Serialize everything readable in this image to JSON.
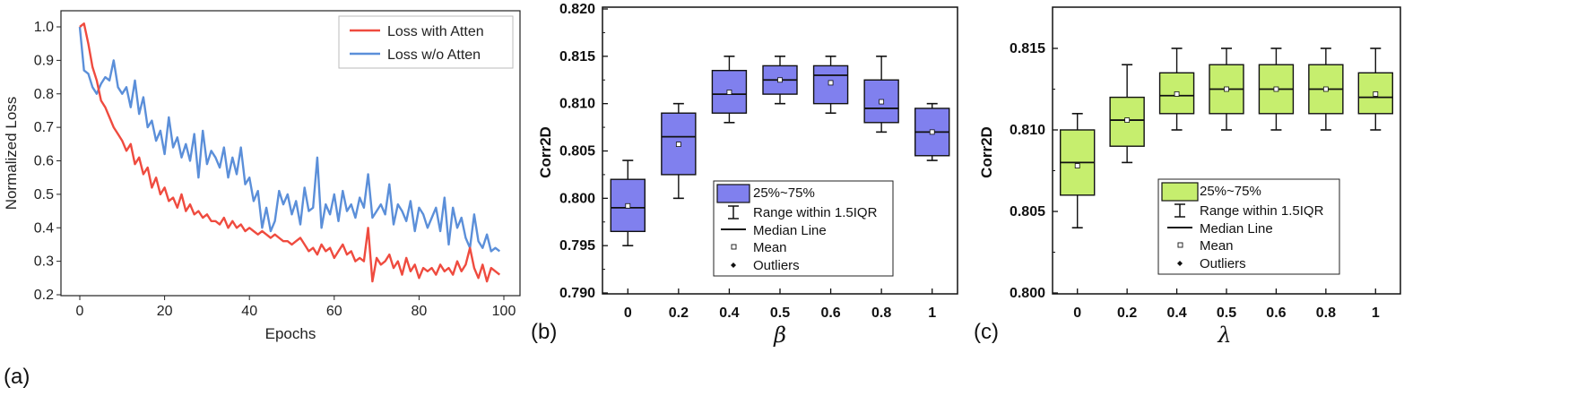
{
  "chart_data": [
    {
      "panel_label": "(a)",
      "type": "line",
      "xlabel": "Epochs",
      "ylabel": "Normalized Loss",
      "xlim": [
        0,
        100
      ],
      "ylim": [
        0.2,
        1.05
      ],
      "xticks": [
        "0",
        "20",
        "40",
        "60",
        "80",
        "100"
      ],
      "yticks": [
        "0.2",
        "0.3",
        "0.4",
        "0.5",
        "0.6",
        "0.7",
        "0.8",
        "0.9",
        "1.0"
      ],
      "legend_position": "top-right",
      "series": [
        {
          "name": "Loss with Atten",
          "color": "#ef4b3f",
          "x": [
            0,
            1,
            2,
            3,
            4,
            5,
            6,
            7,
            8,
            9,
            10,
            11,
            12,
            13,
            14,
            15,
            16,
            17,
            18,
            19,
            20,
            21,
            22,
            23,
            24,
            25,
            26,
            27,
            28,
            29,
            30,
            31,
            32,
            33,
            34,
            35,
            36,
            37,
            38,
            39,
            40,
            41,
            42,
            43,
            44,
            45,
            46,
            47,
            48,
            49,
            50,
            51,
            52,
            53,
            54,
            55,
            56,
            57,
            58,
            59,
            60,
            61,
            62,
            63,
            64,
            65,
            66,
            67,
            68,
            69,
            70,
            71,
            72,
            73,
            74,
            75,
            76,
            77,
            78,
            79,
            80,
            81,
            82,
            83,
            84,
            85,
            86,
            87,
            88,
            89,
            90,
            91,
            92,
            93,
            94,
            95,
            96,
            97,
            98,
            99
          ],
          "values": [
            1.0,
            1.01,
            0.95,
            0.88,
            0.84,
            0.78,
            0.76,
            0.73,
            0.7,
            0.68,
            0.66,
            0.63,
            0.65,
            0.59,
            0.61,
            0.56,
            0.58,
            0.52,
            0.55,
            0.5,
            0.52,
            0.48,
            0.49,
            0.46,
            0.5,
            0.45,
            0.47,
            0.44,
            0.45,
            0.43,
            0.44,
            0.42,
            0.42,
            0.41,
            0.43,
            0.4,
            0.42,
            0.4,
            0.41,
            0.39,
            0.4,
            0.39,
            0.38,
            0.39,
            0.38,
            0.37,
            0.38,
            0.37,
            0.36,
            0.36,
            0.35,
            0.36,
            0.37,
            0.35,
            0.33,
            0.34,
            0.32,
            0.35,
            0.33,
            0.34,
            0.31,
            0.33,
            0.35,
            0.32,
            0.33,
            0.3,
            0.31,
            0.3,
            0.4,
            0.24,
            0.31,
            0.29,
            0.3,
            0.32,
            0.28,
            0.3,
            0.26,
            0.31,
            0.27,
            0.29,
            0.25,
            0.28,
            0.27,
            0.28,
            0.26,
            0.29,
            0.27,
            0.28,
            0.26,
            0.3,
            0.27,
            0.29,
            0.34,
            0.28,
            0.25,
            0.29,
            0.24,
            0.28,
            0.27,
            0.26
          ]
        },
        {
          "name": "Loss w/o Atten",
          "color": "#5b8fd9",
          "x": [
            0,
            1,
            2,
            3,
            4,
            5,
            6,
            7,
            8,
            9,
            10,
            11,
            12,
            13,
            14,
            15,
            16,
            17,
            18,
            19,
            20,
            21,
            22,
            23,
            24,
            25,
            26,
            27,
            28,
            29,
            30,
            31,
            32,
            33,
            34,
            35,
            36,
            37,
            38,
            39,
            40,
            41,
            42,
            43,
            44,
            45,
            46,
            47,
            48,
            49,
            50,
            51,
            52,
            53,
            54,
            55,
            56,
            57,
            58,
            59,
            60,
            61,
            62,
            63,
            64,
            65,
            66,
            67,
            68,
            69,
            70,
            71,
            72,
            73,
            74,
            75,
            76,
            77,
            78,
            79,
            80,
            81,
            82,
            83,
            84,
            85,
            86,
            87,
            88,
            89,
            90,
            91,
            92,
            93,
            94,
            95,
            96,
            97,
            98,
            99
          ],
          "values": [
            1.0,
            0.87,
            0.86,
            0.82,
            0.8,
            0.83,
            0.85,
            0.84,
            0.9,
            0.82,
            0.8,
            0.82,
            0.76,
            0.84,
            0.74,
            0.79,
            0.7,
            0.72,
            0.66,
            0.69,
            0.62,
            0.73,
            0.64,
            0.67,
            0.61,
            0.65,
            0.6,
            0.68,
            0.55,
            0.69,
            0.59,
            0.63,
            0.61,
            0.58,
            0.64,
            0.55,
            0.61,
            0.56,
            0.64,
            0.53,
            0.55,
            0.48,
            0.51,
            0.4,
            0.46,
            0.39,
            0.42,
            0.51,
            0.47,
            0.5,
            0.44,
            0.48,
            0.41,
            0.52,
            0.45,
            0.46,
            0.61,
            0.4,
            0.47,
            0.44,
            0.5,
            0.42,
            0.51,
            0.45,
            0.47,
            0.43,
            0.49,
            0.46,
            0.56,
            0.43,
            0.45,
            0.47,
            0.44,
            0.53,
            0.41,
            0.47,
            0.45,
            0.42,
            0.48,
            0.39,
            0.46,
            0.44,
            0.4,
            0.43,
            0.46,
            0.39,
            0.49,
            0.35,
            0.46,
            0.4,
            0.43,
            0.37,
            0.34,
            0.44,
            0.36,
            0.34,
            0.38,
            0.33,
            0.34,
            0.33
          ]
        }
      ]
    },
    {
      "panel_label": "(b)",
      "type": "box",
      "xlabel": "β",
      "ylabel": "Corr2D",
      "ylim": [
        0.79,
        0.82
      ],
      "yticks": [
        "0.790",
        "0.795",
        "0.800",
        "0.805",
        "0.810",
        "0.815",
        "0.820"
      ],
      "box_color": "#8080ee",
      "categories": [
        "0",
        "0.2",
        "0.4",
        "0.5",
        "0.6",
        "0.8",
        "1"
      ],
      "boxes": [
        {
          "min": 0.795,
          "q1": 0.7965,
          "median": 0.799,
          "q3": 0.802,
          "max": 0.804,
          "mean": 0.7992
        },
        {
          "min": 0.8,
          "q1": 0.8025,
          "median": 0.8065,
          "q3": 0.809,
          "max": 0.81,
          "mean": 0.8057
        },
        {
          "min": 0.808,
          "q1": 0.809,
          "median": 0.811,
          "q3": 0.8135,
          "max": 0.815,
          "mean": 0.8112
        },
        {
          "min": 0.81,
          "q1": 0.811,
          "median": 0.8125,
          "q3": 0.814,
          "max": 0.815,
          "mean": 0.8125
        },
        {
          "min": 0.809,
          "q1": 0.81,
          "median": 0.813,
          "q3": 0.814,
          "max": 0.815,
          "mean": 0.8122
        },
        {
          "min": 0.807,
          "q1": 0.808,
          "median": 0.8095,
          "q3": 0.8125,
          "max": 0.815,
          "mean": 0.8102
        },
        {
          "min": 0.804,
          "q1": 0.8045,
          "median": 0.807,
          "q3": 0.8095,
          "max": 0.81,
          "mean": 0.807
        }
      ],
      "legend": [
        "25%~75%",
        "Range within 1.5IQR",
        "Median Line",
        "Mean",
        "Outliers"
      ]
    },
    {
      "panel_label": "(c)",
      "type": "box",
      "xlabel": "λ",
      "ylabel": "Corr2D",
      "ylim": [
        0.8,
        0.8175
      ],
      "yticks": [
        "0.800",
        "0.805",
        "0.810",
        "0.815"
      ],
      "box_color": "#c6ee6e",
      "categories": [
        "0",
        "0.2",
        "0.4",
        "0.5",
        "0.6",
        "0.8",
        "1"
      ],
      "boxes": [
        {
          "min": 0.804,
          "q1": 0.806,
          "median": 0.808,
          "q3": 0.81,
          "max": 0.811,
          "mean": 0.8078
        },
        {
          "min": 0.808,
          "q1": 0.809,
          "median": 0.8106,
          "q3": 0.812,
          "max": 0.814,
          "mean": 0.8106
        },
        {
          "min": 0.81,
          "q1": 0.811,
          "median": 0.8121,
          "q3": 0.8135,
          "max": 0.815,
          "mean": 0.8122
        },
        {
          "min": 0.81,
          "q1": 0.811,
          "median": 0.8125,
          "q3": 0.814,
          "max": 0.815,
          "mean": 0.8125
        },
        {
          "min": 0.81,
          "q1": 0.811,
          "median": 0.8125,
          "q3": 0.814,
          "max": 0.815,
          "mean": 0.8125
        },
        {
          "min": 0.81,
          "q1": 0.811,
          "median": 0.8125,
          "q3": 0.814,
          "max": 0.815,
          "mean": 0.8125
        },
        {
          "min": 0.81,
          "q1": 0.811,
          "median": 0.812,
          "q3": 0.8135,
          "max": 0.815,
          "mean": 0.8122
        }
      ],
      "legend": [
        "25%~75%",
        "Range within 1.5IQR",
        "Median Line",
        "Mean",
        "Outliers"
      ]
    }
  ]
}
